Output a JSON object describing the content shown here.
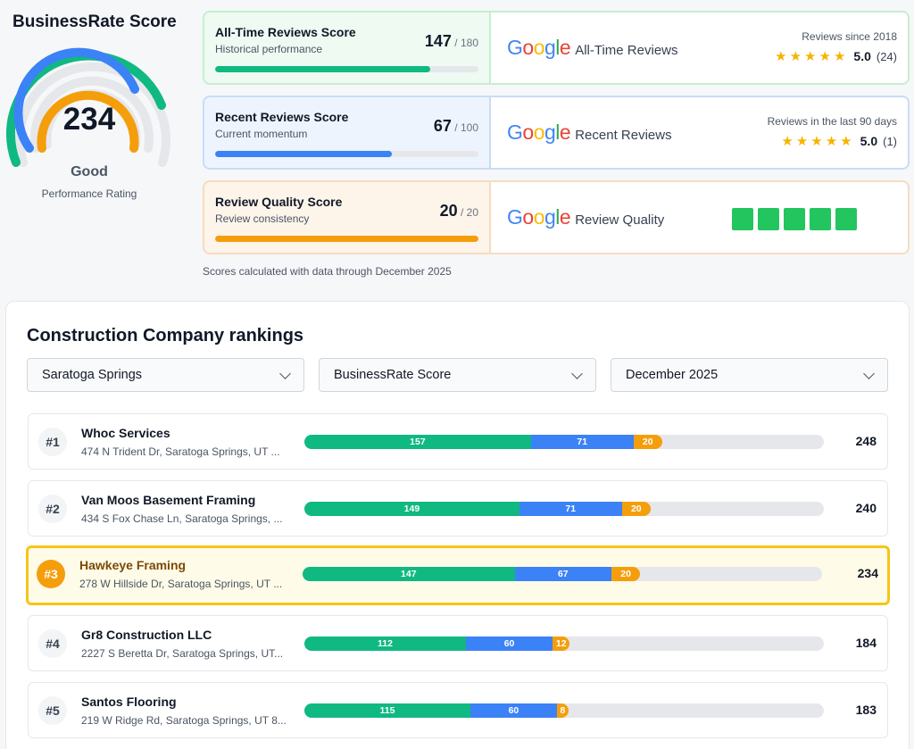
{
  "header": {
    "title": "BusinessRate Score"
  },
  "gauge": {
    "value": "234",
    "max": 360,
    "rating": "Good",
    "subtitle": "Performance Rating"
  },
  "cards": [
    {
      "title": "All-Time Reviews Score",
      "desc": "Historical performance",
      "score": "147",
      "max": "/ 180",
      "fill_fraction": 0.8167,
      "color": "#10b981",
      "google_label": "All-Time Reviews",
      "meta": "Reviews since 2018",
      "stars": "★★★★★",
      "rating": "5.0",
      "count": "(24)"
    },
    {
      "title": "Recent Reviews Score",
      "desc": "Current momentum",
      "score": "67",
      "max": "/ 100",
      "fill_fraction": 0.67,
      "color": "#3b82f6",
      "google_label": "Recent Reviews",
      "meta": "Reviews in the last 90 days",
      "stars": "★★★★★",
      "rating": "5.0",
      "count": "(1)"
    },
    {
      "title": "Review Quality Score",
      "desc": "Review consistency",
      "score": "20",
      "max": "/ 20",
      "fill_fraction": 1.0,
      "color": "#f59e0b",
      "google_label": "Review Quality",
      "quality_blocks": 5
    }
  ],
  "google_logo": [
    "G",
    "o",
    "o",
    "g",
    "l",
    "e"
  ],
  "footnote": "Scores calculated with data through December 2025",
  "rankings": {
    "title": "Construction Company rankings",
    "filters": {
      "location": "Saratoga Springs",
      "metric": "BusinessRate Score",
      "period": "December 2025"
    },
    "scale_max": 360,
    "rows": [
      {
        "rank": "#1",
        "name": "Whoc Services",
        "address": "474 N Trident Dr, Saratoga Springs, UT ...",
        "s1": 157,
        "s2": 71,
        "s3": 20,
        "total": "248",
        "highlight": false
      },
      {
        "rank": "#2",
        "name": "Van Moos Basement Framing",
        "address": "434 S Fox Chase Ln, Saratoga Springs, ...",
        "s1": 149,
        "s2": 71,
        "s3": 20,
        "total": "240",
        "highlight": false
      },
      {
        "rank": "#3",
        "name": "Hawkeye Framing",
        "address": "278 W Hillside Dr, Saratoga Springs, UT ...",
        "s1": 147,
        "s2": 67,
        "s3": 20,
        "total": "234",
        "highlight": true
      },
      {
        "rank": "#4",
        "name": "Gr8 Construction LLC",
        "address": "2227 S Beretta Dr, Saratoga Springs, UT...",
        "s1": 112,
        "s2": 60,
        "s3": 12,
        "total": "184",
        "highlight": false
      },
      {
        "rank": "#5",
        "name": "Santos Flooring",
        "address": "219 W Ridge Rd, Saratoga Springs, UT 8...",
        "s1": 115,
        "s2": 60,
        "s3": 8,
        "total": "183",
        "highlight": false
      }
    ]
  },
  "colors": {
    "green": "#10b981",
    "blue": "#3b82f6",
    "orange": "#f59e0b",
    "highlight_border": "#f5c518"
  },
  "icons": {
    "dropdown": "chevron-down-icon",
    "star": "star-icon",
    "google": "google-logo"
  }
}
